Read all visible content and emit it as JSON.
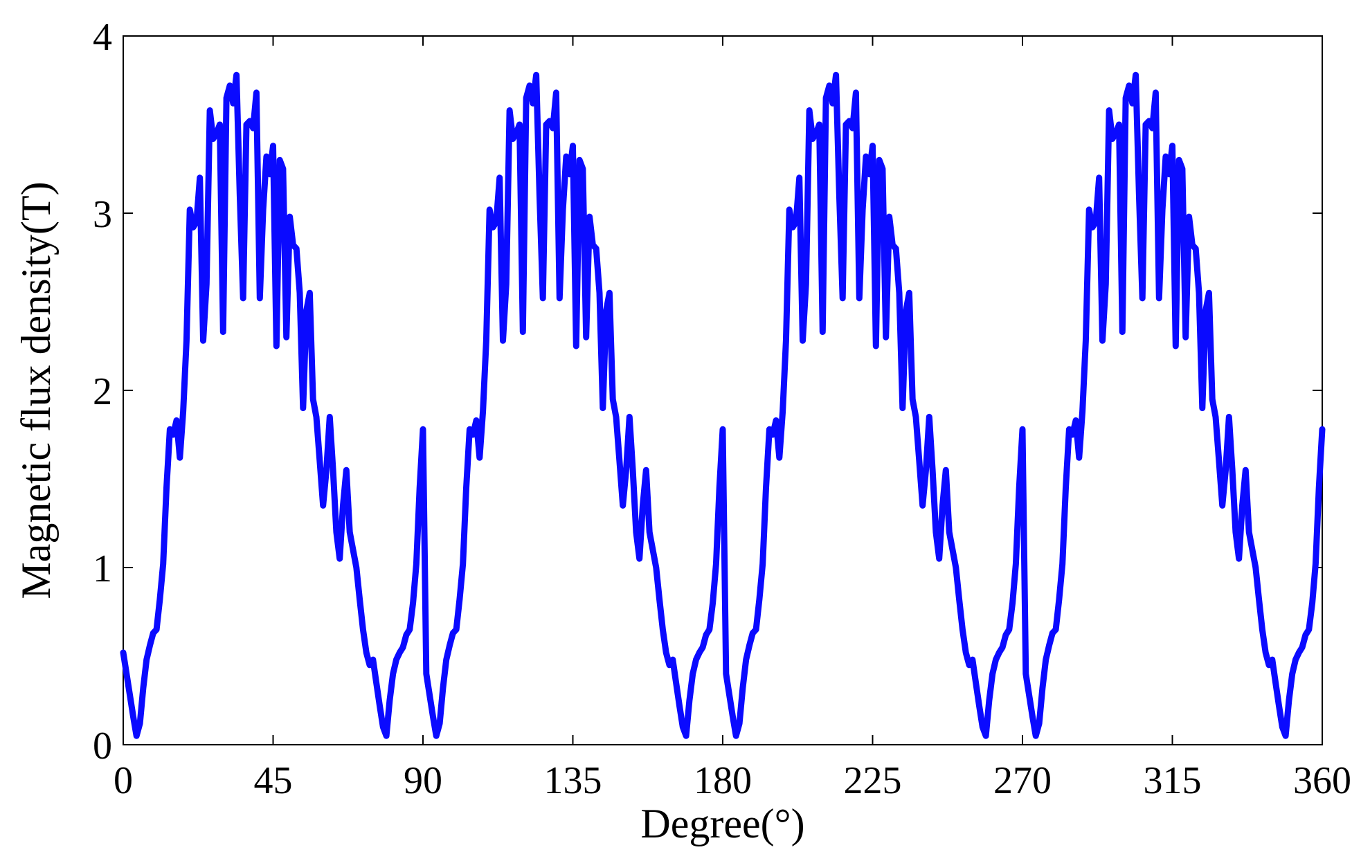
{
  "chart_data": {
    "type": "line",
    "title": "",
    "xlabel": "Degree(°)",
    "ylabel": "Magnetic flux density(T)",
    "xlim": [
      0,
      360
    ],
    "ylim": [
      0,
      4
    ],
    "xticks": [
      0,
      45,
      90,
      135,
      180,
      225,
      270,
      315,
      360
    ],
    "yticks": [
      0,
      1,
      2,
      3,
      4
    ],
    "grid": false,
    "legend": "none",
    "colors": {
      "line": "#0a0aff",
      "axis": "#000000"
    },
    "series": [
      {
        "x": [
          0,
          1,
          2,
          3,
          4,
          5,
          6,
          7,
          8,
          9,
          10,
          11,
          12,
          13,
          14,
          15,
          16,
          17,
          18,
          19,
          20,
          21,
          22,
          23,
          24,
          25,
          26,
          27,
          28,
          29,
          30,
          31,
          32,
          33,
          34,
          35,
          36,
          37,
          38,
          39,
          40,
          41,
          42,
          43,
          44,
          45,
          46,
          47,
          48,
          49,
          50,
          51,
          52,
          53,
          54,
          55,
          56,
          57,
          58,
          59,
          60,
          61,
          62,
          63,
          64,
          65,
          66,
          67,
          68,
          69,
          70,
          71,
          72,
          73,
          74,
          75,
          76,
          77,
          78,
          79,
          80,
          81,
          82,
          83,
          84,
          85,
          86,
          87,
          88,
          89,
          90
        ],
        "y": [
          0.52,
          0.4,
          0.28,
          0.16,
          0.05,
          0.12,
          0.32,
          0.48,
          0.56,
          0.63,
          0.65,
          0.82,
          1.02,
          1.45,
          1.78,
          1.75,
          1.83,
          1.62,
          1.88,
          2.28,
          3.02,
          2.92,
          2.95,
          3.2,
          2.28,
          2.6,
          3.58,
          3.42,
          3.45,
          3.5,
          2.33,
          3.65,
          3.72,
          3.62,
          3.78,
          3.1,
          2.52,
          3.5,
          3.52,
          3.48,
          3.68,
          2.52,
          3.02,
          3.32,
          3.22,
          3.38,
          2.25,
          3.3,
          3.25,
          2.3,
          2.98,
          2.82,
          2.8,
          2.55,
          1.9,
          2.45,
          2.55,
          1.95,
          1.85,
          1.6,
          1.35,
          1.55,
          1.85,
          1.55,
          1.2,
          1.05,
          1.35,
          1.55,
          1.2,
          1.1,
          1.0,
          0.82,
          0.65,
          0.52,
          0.45,
          0.48,
          0.35,
          0.22,
          0.1,
          0.05,
          0.25,
          0.4,
          0.48,
          0.52,
          0.55,
          0.62,
          0.65,
          0.8,
          1.02,
          1.45,
          1.78
        ]
      }
    ]
  }
}
